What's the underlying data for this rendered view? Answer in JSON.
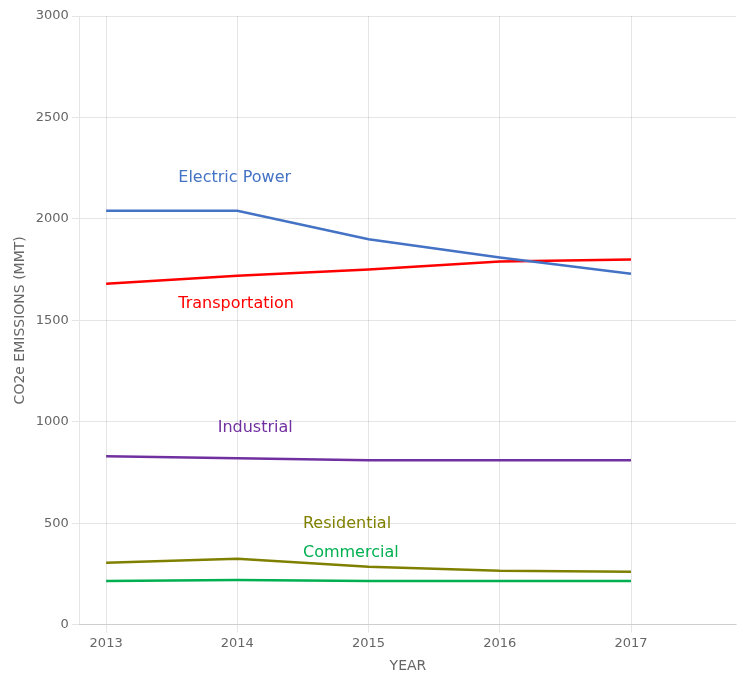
{
  "chart_data": {
    "type": "line",
    "x": [
      2013,
      2014,
      2015,
      2016,
      2017
    ],
    "series": [
      {
        "name": "Electric Power",
        "color": "#4472C4",
        "values": [
          2040,
          2040,
          1900,
          1810,
          1730
        ]
      },
      {
        "name": "Transportation",
        "color": "#FF0000",
        "values": [
          1680,
          1720,
          1750,
          1790,
          1800
        ]
      },
      {
        "name": "Industrial",
        "color": "#7030A0",
        "values": [
          830,
          820,
          810,
          810,
          810
        ]
      },
      {
        "name": "Residential",
        "color": "#808000",
        "values": [
          305,
          325,
          285,
          265,
          260
        ]
      },
      {
        "name": "Commercial",
        "color": "#00B050",
        "values": [
          215,
          220,
          215,
          215,
          215
        ]
      }
    ],
    "annotations": [
      {
        "text": "Electric Power",
        "x": 2013.55,
        "y": 2200,
        "color": "#4472C4"
      },
      {
        "text": "Transportation",
        "x": 2013.55,
        "y": 1580,
        "color": "#FF0000"
      },
      {
        "text": "Industrial",
        "x": 2013.85,
        "y": 970,
        "color": "#7030A0"
      },
      {
        "text": "Residential",
        "x": 2014.5,
        "y": 495,
        "color": "#808000"
      },
      {
        "text": "Commercial",
        "x": 2014.5,
        "y": 355,
        "color": "#00B050"
      }
    ],
    "xlim": [
      2012.8,
      2017.8
    ],
    "xticks": [
      2013,
      2014,
      2015,
      2016,
      2017
    ],
    "ylim": [
      0,
      3000
    ],
    "yticks": [
      0,
      500,
      1000,
      1500,
      2000,
      2500,
      3000
    ],
    "xlabel": "YEAR",
    "ylabel": "CO2e EMISSIONS (MMT)",
    "grid": true
  }
}
